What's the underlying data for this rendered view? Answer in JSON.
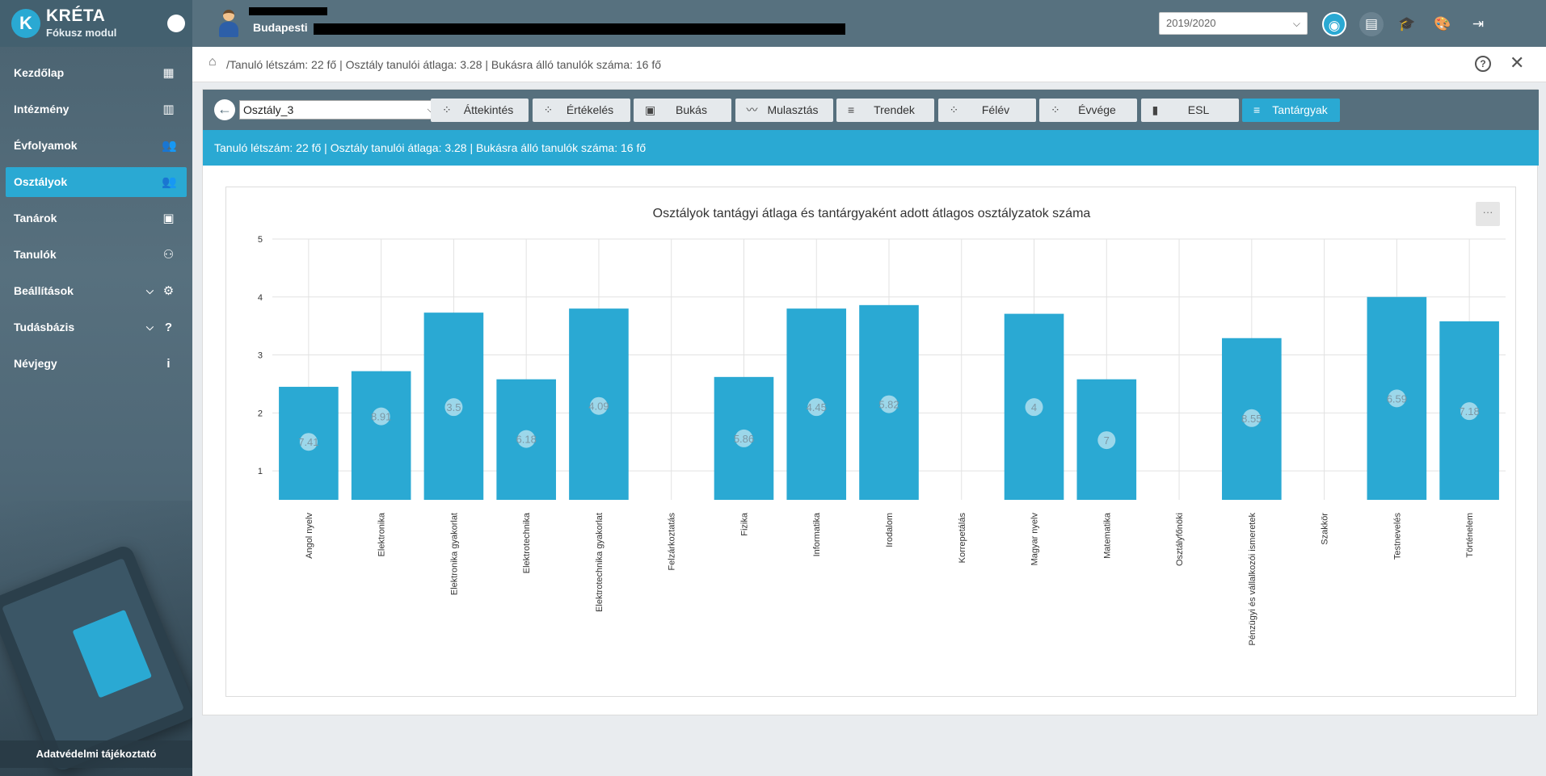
{
  "app": {
    "title": "KRÉTA",
    "subtitle": "Fókusz modul",
    "logo_letter": "K"
  },
  "sidebar": {
    "items": [
      {
        "label": "Kezdőlap",
        "icon": "dashboard-icon",
        "glyph": "▦",
        "active": false
      },
      {
        "label": "Intézmény",
        "icon": "building-icon",
        "glyph": "▥",
        "active": false
      },
      {
        "label": "Évfolyamok",
        "icon": "group-icon",
        "glyph": "👥",
        "active": false
      },
      {
        "label": "Osztályok",
        "icon": "group-icon",
        "glyph": "👥",
        "active": true
      },
      {
        "label": "Tanárok",
        "icon": "contact-card-icon",
        "glyph": "▣",
        "active": false
      },
      {
        "label": "Tanulók",
        "icon": "students-icon",
        "glyph": "⚇",
        "active": false
      },
      {
        "label": "Beállítások",
        "icon": "gear-icon",
        "glyph": "⚙",
        "active": false,
        "expandable": true
      },
      {
        "label": "Tudásbázis",
        "icon": "help-icon",
        "glyph": "?",
        "active": false,
        "expandable": true
      },
      {
        "label": "Névjegy",
        "icon": "info-icon",
        "glyph": "i",
        "active": false
      }
    ],
    "privacy_label": "Adatvédelmi tájékoztató"
  },
  "topbar": {
    "school_prefix": "Budapesti",
    "year": "2019/2020",
    "icons": [
      "eye-off-icon",
      "id-card-icon",
      "graduation-cap-icon",
      "palette-icon",
      "logout-icon"
    ]
  },
  "breadcrumb": {
    "separator": "/",
    "text": "Tanuló létszám: 22 fő | Osztály tanulói átlaga: 3.28 | Bukásra álló tanulók száma: 16 fő"
  },
  "toolbar": {
    "class_value": "Osztály_3",
    "buttons": [
      {
        "label": "Áttekintés",
        "icon": "bubbles-icon",
        "glyph": "⁘",
        "active": false
      },
      {
        "label": "Értékelés",
        "icon": "bubbles-icon",
        "glyph": "⁘",
        "active": false
      },
      {
        "label": "Bukás",
        "icon": "person-card-icon",
        "glyph": "▣",
        "active": false
      },
      {
        "label": "Mulasztás",
        "icon": "trend-icon",
        "glyph": "〰",
        "active": false
      },
      {
        "label": "Trendek",
        "icon": "list-icon",
        "glyph": "≡",
        "active": false
      },
      {
        "label": "Félév",
        "icon": "bubbles-icon",
        "glyph": "⁘",
        "active": false
      },
      {
        "label": "Évvége",
        "icon": "bubbles-icon",
        "glyph": "⁘",
        "active": false
      },
      {
        "label": "ESL",
        "icon": "bar-chart-icon",
        "glyph": "▮",
        "active": false
      },
      {
        "label": "Tantárgyak",
        "icon": "list-icon",
        "glyph": "≡",
        "active": true
      }
    ]
  },
  "infobar": {
    "text": "Tanuló létszám: 22 fő | Osztály tanulói átlaga: 3.28 | Bukásra álló tanulók száma: 16 fő"
  },
  "chart_data": {
    "type": "bar",
    "title": "Osztályok tantágyi átlaga és tantárgyaként adott átlagos osztályzatok száma",
    "ylim": [
      0.5,
      5
    ],
    "yticks": [
      1,
      2,
      3,
      4,
      5
    ],
    "grid": true,
    "categories": [
      "Angol nyelv",
      "Elektronika",
      "Elektronika gyakorlat",
      "Elektrotechnika",
      "Elektrotechnika gyakorlat",
      "Felzárkoztatás",
      "Fizika",
      "Informatika",
      "Irodalom",
      "Korrepetálás",
      "Magyar nyelv",
      "Matematika",
      "Osztályfőnöki",
      "Pénzügyi és vállalkozói ismeretek",
      "Szakkör",
      "Testnevelés",
      "Történelem"
    ],
    "series": [
      {
        "values": [
          2.45,
          2.72,
          3.73,
          2.58,
          3.8,
          null,
          2.62,
          3.8,
          3.86,
          null,
          3.71,
          2.58,
          null,
          3.29,
          null,
          4.0,
          3.58
        ]
      },
      {
        "values": [
          1.5,
          1.94,
          2.1,
          1.55,
          2.12,
          null,
          1.56,
          2.1,
          2.15,
          null,
          2.1,
          1.53,
          null,
          1.91,
          null,
          2.25,
          2.03
        ],
        "labels": [
          "7.41",
          "8.91",
          "3.5",
          "6.18",
          "4.09",
          "",
          "5.86",
          "4.45",
          "5.82",
          "",
          "4",
          "7",
          "",
          "8.55",
          "",
          "6.59",
          "7.18"
        ]
      }
    ],
    "colors": {
      "bar": "#2aa9d3",
      "bubble": "#a8dcec",
      "grid": "#e2e2e2"
    }
  },
  "colors": {
    "accent": "#2aa9d3",
    "sidebar": "#4f6877",
    "toolbar": "#566f7d"
  }
}
